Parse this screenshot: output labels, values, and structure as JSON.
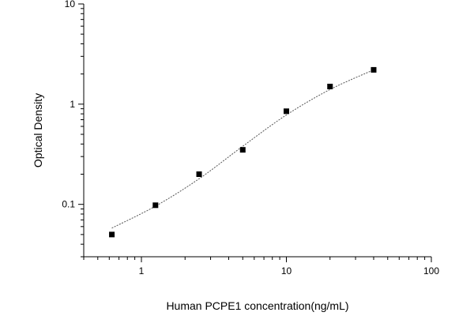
{
  "chart_data": {
    "type": "scatter",
    "title": "",
    "xlabel": "Human PCPE1 concentration(ng/mL)",
    "ylabel": "Optical Density",
    "xscale": "log",
    "yscale": "log",
    "xlim": [
      0.4,
      100
    ],
    "ylim": [
      0.03,
      10
    ],
    "xticks": [
      {
        "value": 1,
        "label": "1"
      },
      {
        "value": 10,
        "label": "10"
      },
      {
        "value": 100,
        "label": "100"
      }
    ],
    "yticks": [
      {
        "value": 0.1,
        "label": "0.1"
      },
      {
        "value": 1,
        "label": "1"
      },
      {
        "value": 10,
        "label": "10"
      }
    ],
    "grid": false,
    "series": [
      {
        "type": "scatter",
        "marker": "square",
        "color": "#000000",
        "x": [
          0.625,
          1.25,
          2.5,
          5,
          10,
          20,
          40
        ],
        "y": [
          0.05,
          0.098,
          0.2,
          0.35,
          0.85,
          1.5,
          2.2
        ]
      },
      {
        "type": "line",
        "style": "dotted-fit",
        "color": "#555555",
        "x": [
          0.625,
          1.25,
          2.5,
          5,
          10,
          20,
          40
        ],
        "y": [
          0.058,
          0.096,
          0.18,
          0.38,
          0.78,
          1.4,
          2.2
        ]
      }
    ]
  }
}
